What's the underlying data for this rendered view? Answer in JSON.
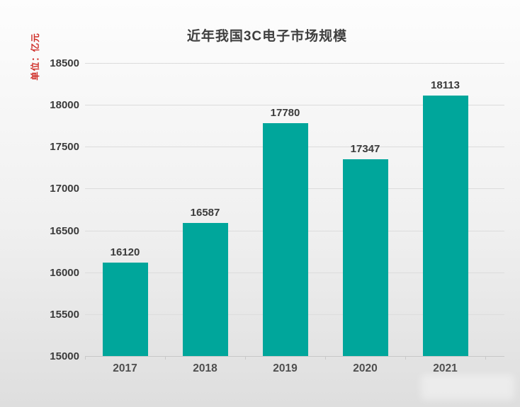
{
  "page": {
    "background_top": "#fdfdfd",
    "background_mid": "#f0f0f0",
    "background_bottom": "#dedede"
  },
  "chart_data": {
    "type": "bar",
    "title": "近年我国3C电子市场规模",
    "unit_label": "单位：亿元",
    "categories": [
      "2017",
      "2018",
      "2019",
      "2020",
      "2021"
    ],
    "values": [
      16120,
      16587,
      17780,
      17347,
      18113
    ],
    "value_labels": [
      "16120",
      "16587",
      "17780",
      "17347",
      "18113"
    ],
    "ylim": [
      15000,
      18500
    ],
    "yticks": [
      15000,
      15500,
      16000,
      16500,
      17000,
      17500,
      18000,
      18500
    ],
    "grid": true,
    "legend": "none",
    "colors": {
      "bar": "#00a69b",
      "title": "#3f3f3f",
      "value_label": "#3b3b3b",
      "ytick_label": "#3b3b3b",
      "year_label": "#4f4f4f",
      "gridline": "#dcdcdc",
      "axis_line": "#c8c8c8",
      "unit_label": "#d0302a"
    }
  }
}
